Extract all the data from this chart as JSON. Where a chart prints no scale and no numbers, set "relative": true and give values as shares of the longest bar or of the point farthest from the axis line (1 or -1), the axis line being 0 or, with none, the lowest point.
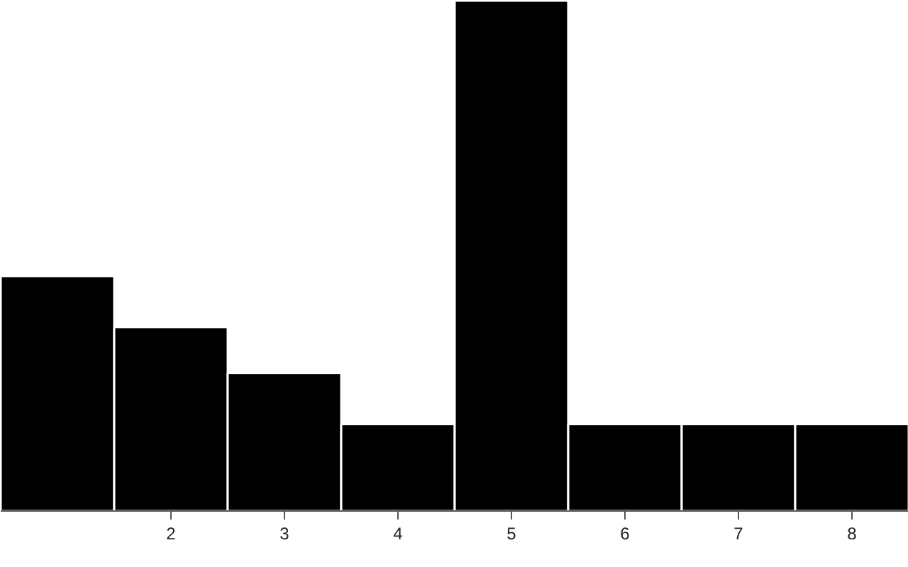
{
  "chart_data": {
    "type": "bar",
    "relative": true,
    "x": [
      1,
      2,
      3,
      4,
      5,
      6,
      7,
      8
    ],
    "values": [
      0.46,
      0.36,
      0.27,
      0.17,
      1,
      0.17,
      0.17,
      0.17
    ],
    "color": "#000000",
    "xlim": [
      0.5,
      8.5
    ],
    "xticks": [
      2,
      3,
      4,
      5,
      6,
      7,
      8
    ]
  }
}
